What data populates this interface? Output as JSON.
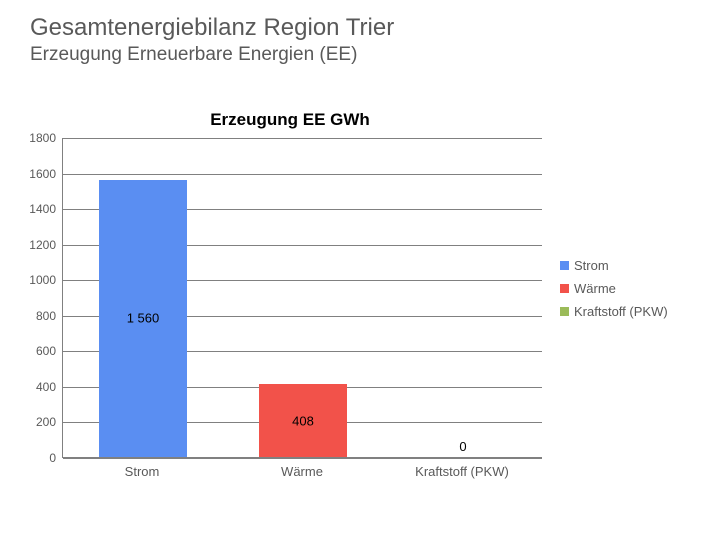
{
  "header": {
    "title": "Gesamtenergiebilanz Region Trier",
    "subtitle": "Erzeugung Erneuerbare Energien (EE)"
  },
  "chart": {
    "type": "bar",
    "title": "Erzeugung EE GWh",
    "categories": [
      "Strom",
      "Wärme",
      "Kraftstoff (PKW)"
    ],
    "values": [
      1560,
      408,
      0
    ],
    "value_labels": [
      "1 560",
      "408",
      "0"
    ],
    "bar_colors": [
      "#5a8ef2",
      "#f2524a",
      "#9bbb59"
    ],
    "ylim": [
      0,
      1800
    ],
    "ytick_step": 200,
    "yticks": [
      0,
      200,
      400,
      600,
      800,
      1000,
      1200,
      1400,
      1600,
      1800
    ],
    "grid_color": "#808080",
    "background_color": "#ffffff",
    "bar_width_ratio": 0.55,
    "label_fontsize": 13,
    "title_fontsize": 17,
    "tick_fontsize": 12,
    "tick_color": "#595959"
  },
  "legend": {
    "items": [
      {
        "label": "Strom",
        "color": "#5a8ef2"
      },
      {
        "label": "Wärme",
        "color": "#f2524a"
      },
      {
        "label": "Kraftstoff (PKW)",
        "color": "#9bbb59"
      }
    ]
  }
}
